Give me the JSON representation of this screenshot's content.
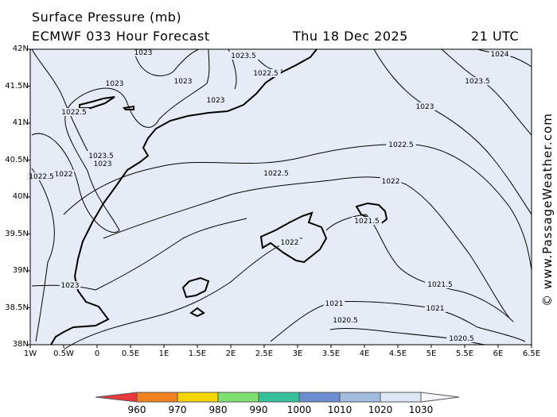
{
  "title": "Surface Pressure (mb)",
  "model_line": "ECMWF 033 Hour Forecast",
  "date": "Thu 18 Dec 2025",
  "time_utc": "21 UTC",
  "credit": "© www.PassageWeather.com",
  "map": {
    "background_color": "#e6ebf5",
    "isobar_color": "#000000",
    "lat_labels": [
      "42N",
      "41.5N",
      "41N",
      "40.5N",
      "40N",
      "39.5N",
      "39N",
      "38.5N",
      "38N"
    ],
    "lon_labels": [
      "1W",
      "0.5W",
      "0",
      "0.5E",
      "1E",
      "1.5E",
      "2E",
      "2.5E",
      "3E",
      "3.5E",
      "4E",
      "4.5E",
      "5E",
      "5.5E",
      "6E",
      "6.5E"
    ],
    "isobar_labels": [
      "1023",
      "1023.5",
      "1024",
      "1023.5",
      "1022.5",
      "1023",
      "1023",
      "1023",
      "1022.5",
      "1022.5",
      "1023",
      "1023.5",
      "1023",
      "1022",
      "1022.5",
      "1022.5",
      "1022",
      "1021.5",
      "1022",
      "1023",
      "1021.5",
      "1021",
      "1021",
      "1020.5",
      "1020.5"
    ]
  },
  "color_scale": {
    "labels": [
      "960",
      "970",
      "980",
      "990",
      "1000",
      "1010",
      "1020",
      "1030"
    ],
    "colors": [
      "#e8393f",
      "#f0831e",
      "#f5d400",
      "#7ee070",
      "#34c29a",
      "#6a8ed0",
      "#a4bcdc",
      "#dde6f4"
    ]
  }
}
